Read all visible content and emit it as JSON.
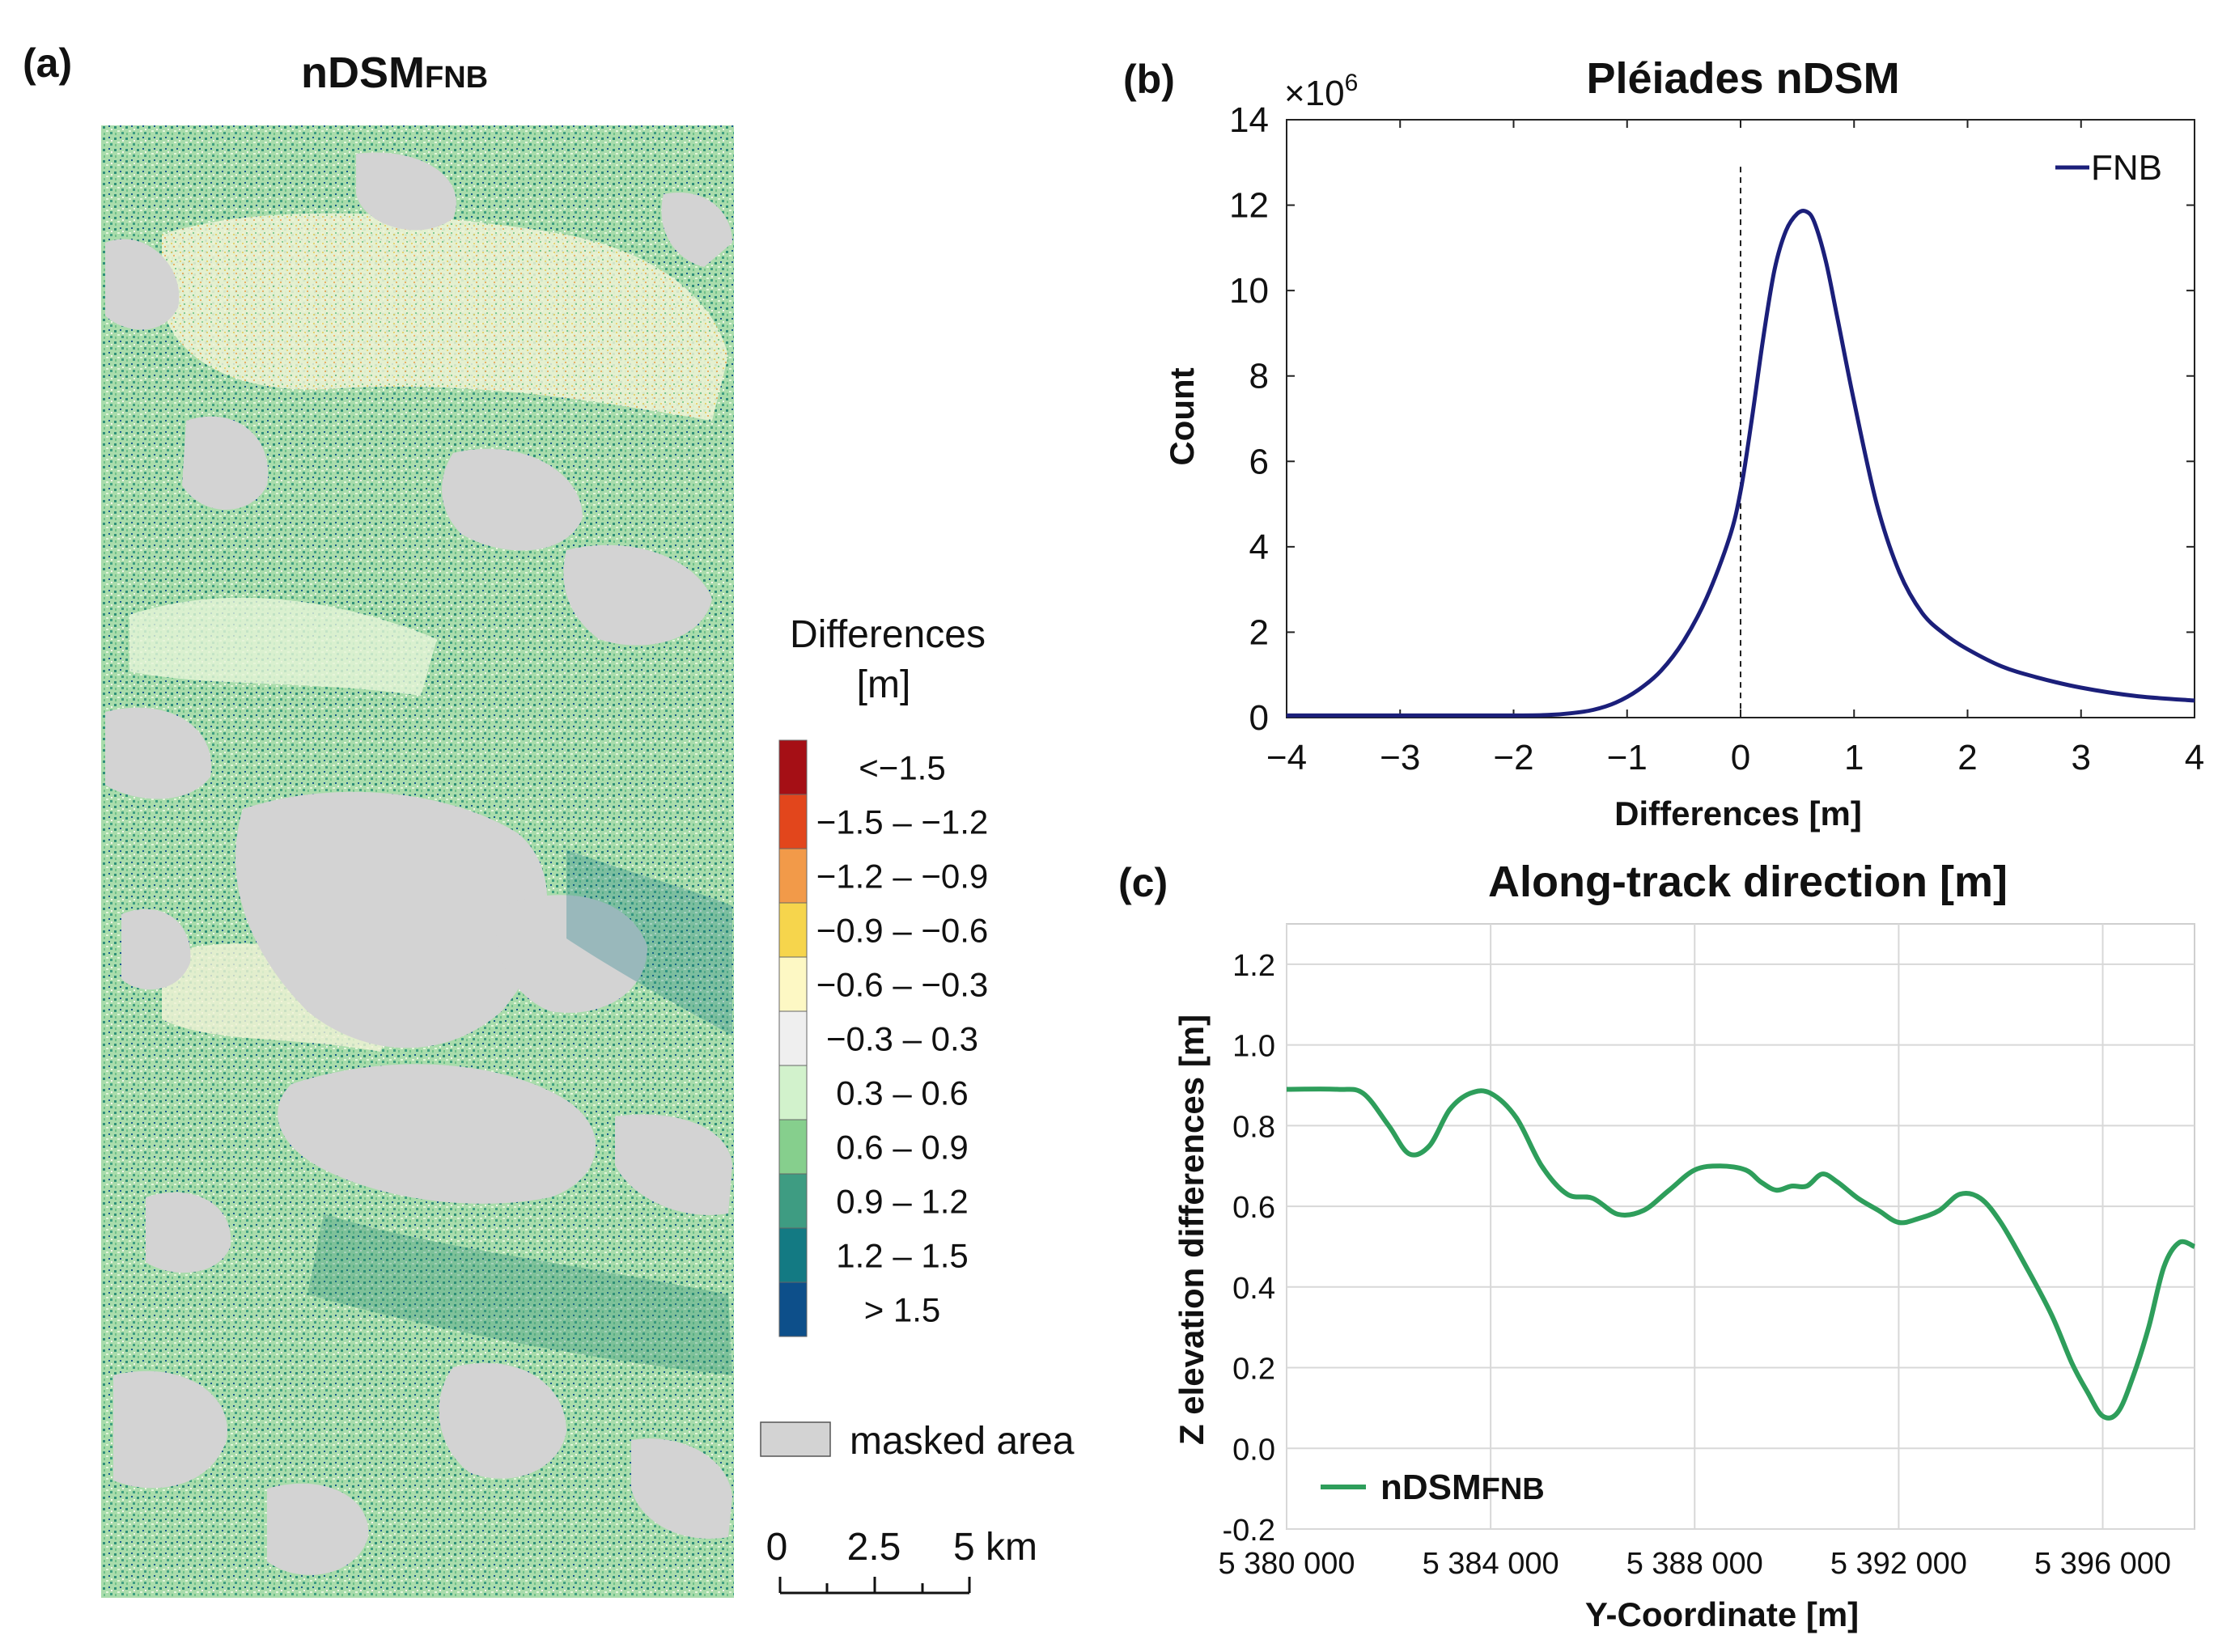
{
  "panel_a": {
    "label": "(a)",
    "title_main": "nDSM",
    "title_sub": "FNB",
    "colorbar": {
      "title_line1": "Differences",
      "title_line2": "[m]",
      "classes": [
        {
          "label": "<−1.5",
          "color": "#a50f15"
        },
        {
          "label": "−1.5 – −1.2",
          "color": "#e2461c"
        },
        {
          "label": "−1.2 – −0.9",
          "color": "#f29a49"
        },
        {
          "label": "−0.9 – −0.6",
          "color": "#f6d54c"
        },
        {
          "label": "−0.6 – −0.3",
          "color": "#fdf8c4"
        },
        {
          "label": "−0.3 – 0.3",
          "color": "#efefef"
        },
        {
          "label": "0.3 – 0.6",
          "color": "#d2f2cc"
        },
        {
          "label": "0.6 – 0.9",
          "color": "#86cf8d"
        },
        {
          "label": "0.9 – 1.2",
          "color": "#3e9c82"
        },
        {
          "label": "1.2 – 1.5",
          "color": "#137a83"
        },
        {
          "label": "> 1.5",
          "color": "#0d4f8a"
        }
      ]
    },
    "masked_label": "masked area",
    "masked_color": "#d3d3d3",
    "scalebar": {
      "labels": [
        "0",
        "2.5",
        "5 km"
      ]
    }
  },
  "chart_data": [
    {
      "type": "line",
      "panel": "(b)",
      "title": "Pléiades nDSM",
      "xlabel": "Differences [m]",
      "ylabel": "Count",
      "y_multiplier": "×10",
      "y_multiplier_exp": "6",
      "xlim": [
        -4,
        4
      ],
      "ylim": [
        0,
        14
      ],
      "xticks": [
        -4,
        -3,
        -2,
        -1,
        0,
        1,
        2,
        3,
        4
      ],
      "yticks": [
        0,
        2,
        4,
        6,
        8,
        10,
        12,
        14
      ],
      "vline_x": 0,
      "legend": "top-right",
      "series": [
        {
          "name": "FNB",
          "color": "#1b1f7a",
          "x": [
            -4,
            -3,
            -2,
            -1.7,
            -1.5,
            -1.3,
            -1.1,
            -0.9,
            -0.7,
            -0.5,
            -0.3,
            -0.1,
            0,
            0.1,
            0.2,
            0.3,
            0.4,
            0.5,
            0.58,
            0.65,
            0.75,
            0.85,
            1.0,
            1.2,
            1.4,
            1.6,
            1.8,
            2.0,
            2.3,
            2.6,
            3.0,
            3.5,
            4.0
          ],
          "y": [
            0.05,
            0.05,
            0.05,
            0.06,
            0.1,
            0.18,
            0.35,
            0.65,
            1.1,
            1.8,
            2.8,
            4.2,
            5.3,
            7.0,
            8.9,
            10.5,
            11.4,
            11.8,
            11.85,
            11.6,
            10.7,
            9.4,
            7.4,
            5.0,
            3.4,
            2.45,
            1.95,
            1.6,
            1.2,
            0.95,
            0.7,
            0.5,
            0.4
          ]
        }
      ]
    },
    {
      "type": "line",
      "panel": "(c)",
      "title": "Along-track direction [m]",
      "xlabel": "Y-Coordinate [m]",
      "ylabel": "Z elevation differences [m]",
      "xlim": [
        5380000,
        5397800
      ],
      "ylim": [
        -0.2,
        1.3
      ],
      "xticks": [
        5380000,
        5384000,
        5388000,
        5392000,
        5396000
      ],
      "xtick_labels": [
        "5 380 000",
        "5 384 000",
        "5 388 000",
        "5 392 000",
        "5 396 000"
      ],
      "yticks": [
        -0.2,
        0.0,
        0.2,
        0.4,
        0.6,
        0.8,
        1.0,
        1.2
      ],
      "ytick_labels": [
        "-0.2",
        "0.0",
        "0.2",
        "0.4",
        "0.6",
        "0.8",
        "1.0",
        "1.2"
      ],
      "grid": true,
      "legend": "bottom-left",
      "series": [
        {
          "name": "nDSM",
          "name_sub": "FNB",
          "color": "#2e9e5b",
          "x": [
            5380000,
            5381000,
            5381500,
            5382000,
            5382400,
            5382800,
            5383200,
            5383600,
            5384000,
            5384500,
            5385000,
            5385500,
            5386000,
            5386500,
            5387000,
            5387500,
            5388000,
            5388500,
            5389000,
            5389300,
            5389600,
            5389900,
            5390200,
            5390500,
            5390800,
            5391200,
            5391600,
            5392000,
            5392400,
            5392800,
            5393200,
            5393600,
            5394000,
            5394500,
            5395000,
            5395400,
            5395700,
            5396000,
            5396300,
            5396600,
            5396900,
            5397200,
            5397500,
            5397800
          ],
          "y": [
            0.89,
            0.89,
            0.88,
            0.8,
            0.73,
            0.75,
            0.84,
            0.88,
            0.88,
            0.82,
            0.7,
            0.63,
            0.62,
            0.58,
            0.59,
            0.64,
            0.69,
            0.7,
            0.69,
            0.66,
            0.64,
            0.65,
            0.65,
            0.68,
            0.66,
            0.62,
            0.59,
            0.56,
            0.57,
            0.59,
            0.63,
            0.62,
            0.56,
            0.45,
            0.33,
            0.21,
            0.14,
            0.08,
            0.09,
            0.18,
            0.3,
            0.45,
            0.51,
            0.5
          ]
        }
      ]
    }
  ]
}
